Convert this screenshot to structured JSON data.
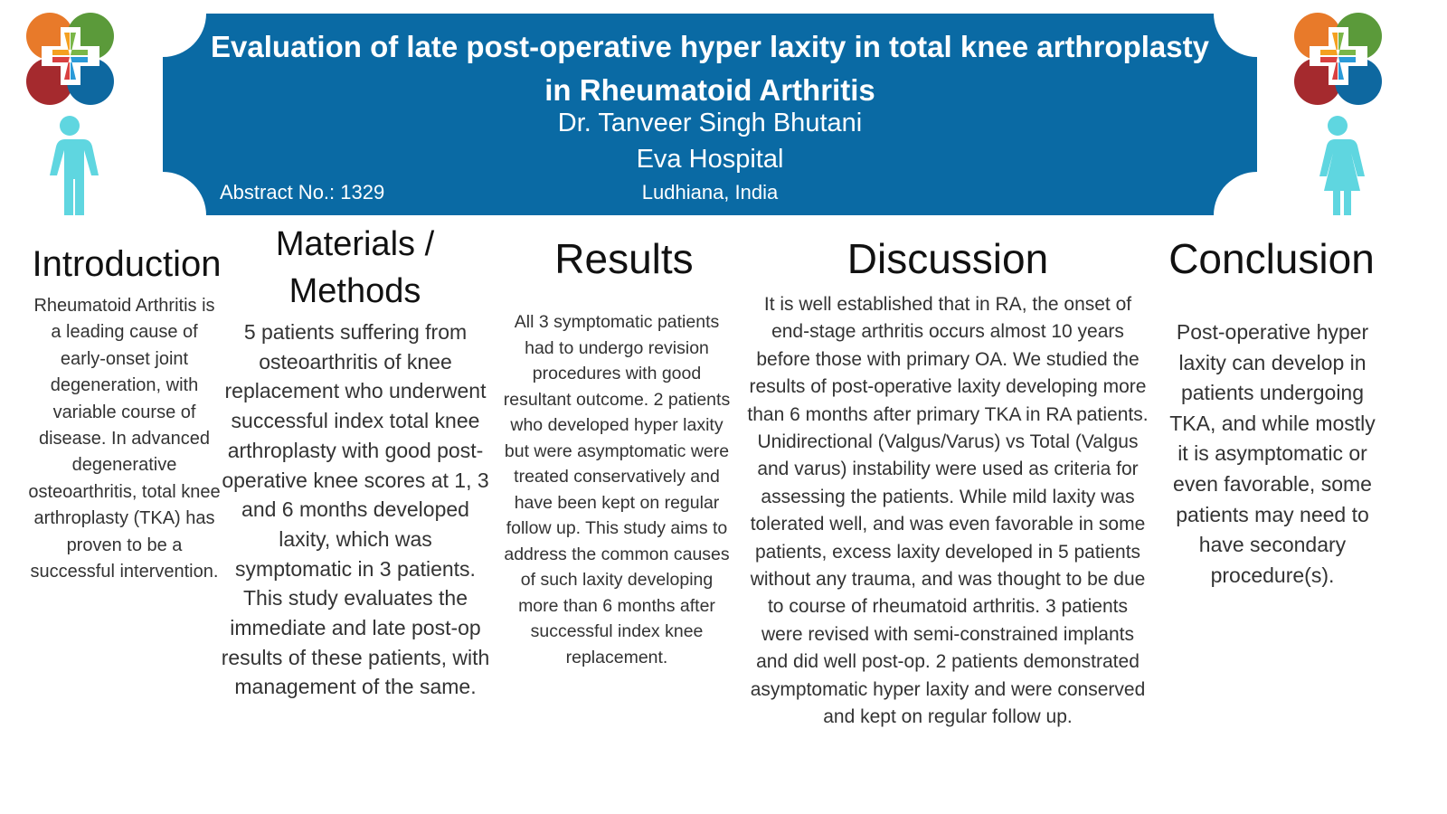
{
  "header": {
    "title": "Evaluation of late post-operative hyper laxity in total knee arthroplasty in Rheumatoid Arthritis",
    "author": "Dr. Tanveer Singh Bhutani",
    "hospital": "Eva Hospital",
    "abstract_no": "Abstract No.: 1329",
    "location": "Ludhiana, India"
  },
  "sections": [
    {
      "heading": "Introduction",
      "body": "Rheumatoid Arthritis is a leading cause of early-onset joint degeneration, with variable course of disease. In advanced degenerative osteoarthritis, total knee arthroplasty (TKA) has proven to be a successful intervention."
    },
    {
      "heading": "Materials / Methods",
      "body": "5 patients suffering from osteoarthritis of knee replacement who underwent successful index total knee arthroplasty with good post-operative knee scores at 1, 3 and 6 months developed laxity, which was symptomatic in 3 patients. This study evaluates the immediate and late post-op results of these patients, with management of the same."
    },
    {
      "heading": "Results",
      "body": "All 3 symptomatic patients had to undergo revision procedures with good resultant outcome. 2 patients who developed hyper laxity but were asymptomatic were treated conservatively and have been kept on regular follow up. This study aims to address the common causes of such laxity developing more than 6 months after successful index knee replacement."
    },
    {
      "heading": "Discussion",
      "body": "It is well established that in RA, the onset of end-stage arthritis occurs almost 10 years before those with primary OA. We studied the results of post-operative laxity developing more than 6 months after primary TKA in RA patients. Unidirectional (Valgus/Varus) vs Total (Valgus and varus) instability were used as criteria for assessing the patients. While mild laxity was tolerated well, and was even favorable in some patients, excess laxity developed in 5 patients without any trauma, and was thought to be due to course of rheumatoid arthritis. 3 patients were revised with semi-constrained implants and did well post-op. 2 patients demonstrated asymptomatic hyper laxity and were conserved and kept on regular follow up."
    },
    {
      "heading": "Conclusion",
      "body": "Post-operative hyper laxity can develop in patients undergoing TKA, and while mostly it is asymptomatic or even favorable, some patients may need to have secondary procedure(s)."
    }
  ]
}
